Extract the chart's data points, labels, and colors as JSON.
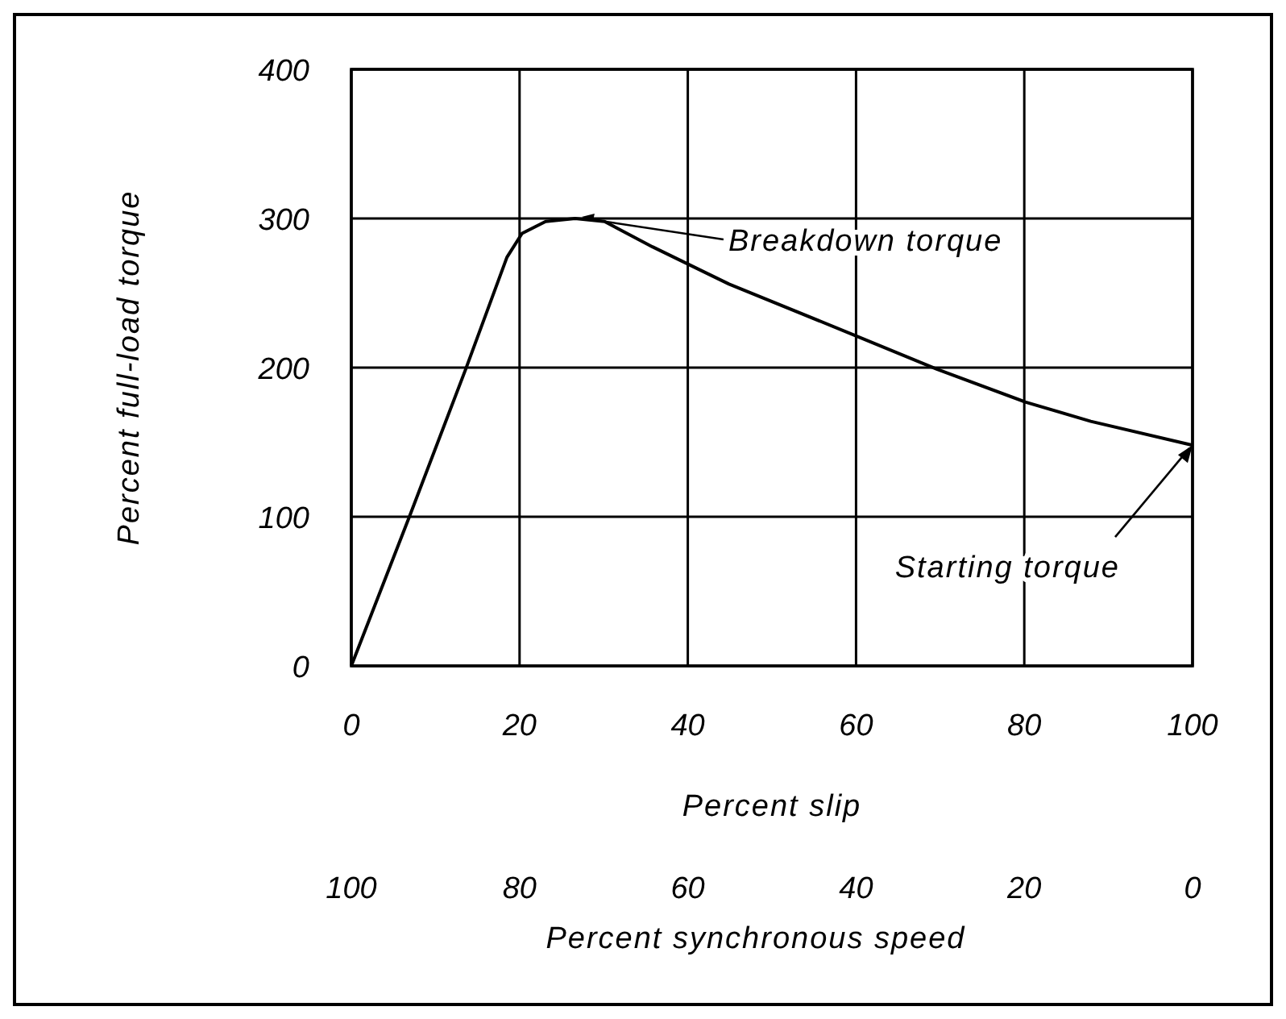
{
  "chart_data": {
    "type": "line",
    "xlabel": "Percent slip",
    "ylabel": "Percent full-load torque",
    "x2label": "Percent synchronous speed",
    "x": [
      0,
      6.9,
      13.6,
      18.5,
      20.3,
      23.1,
      26.6,
      30.1,
      35.8,
      44.9,
      59.7,
      69.6,
      80.1,
      87.9,
      100
    ],
    "series": [
      {
        "color": "#000000",
        "values": [
          0,
          100,
          199,
          274,
          290,
          298,
          300,
          298,
          281,
          256,
          222,
          199,
          177,
          164,
          148
        ]
      }
    ],
    "xlim": [
      0,
      100
    ],
    "xticks": [
      0,
      20,
      40,
      60,
      80,
      100
    ],
    "ylim": [
      0,
      400
    ],
    "yticks": [
      0,
      100,
      200,
      300,
      400
    ],
    "x2lim": [
      100,
      0
    ],
    "x2ticks": [
      100,
      80,
      60,
      40,
      20,
      0
    ],
    "grid": true,
    "marker": "none",
    "line_style": "solid",
    "annotations": [
      {
        "text": "Breakdown torque",
        "x": 27,
        "y": 300
      },
      {
        "text": "Starting torque",
        "x": 100,
        "y": 148
      }
    ]
  }
}
